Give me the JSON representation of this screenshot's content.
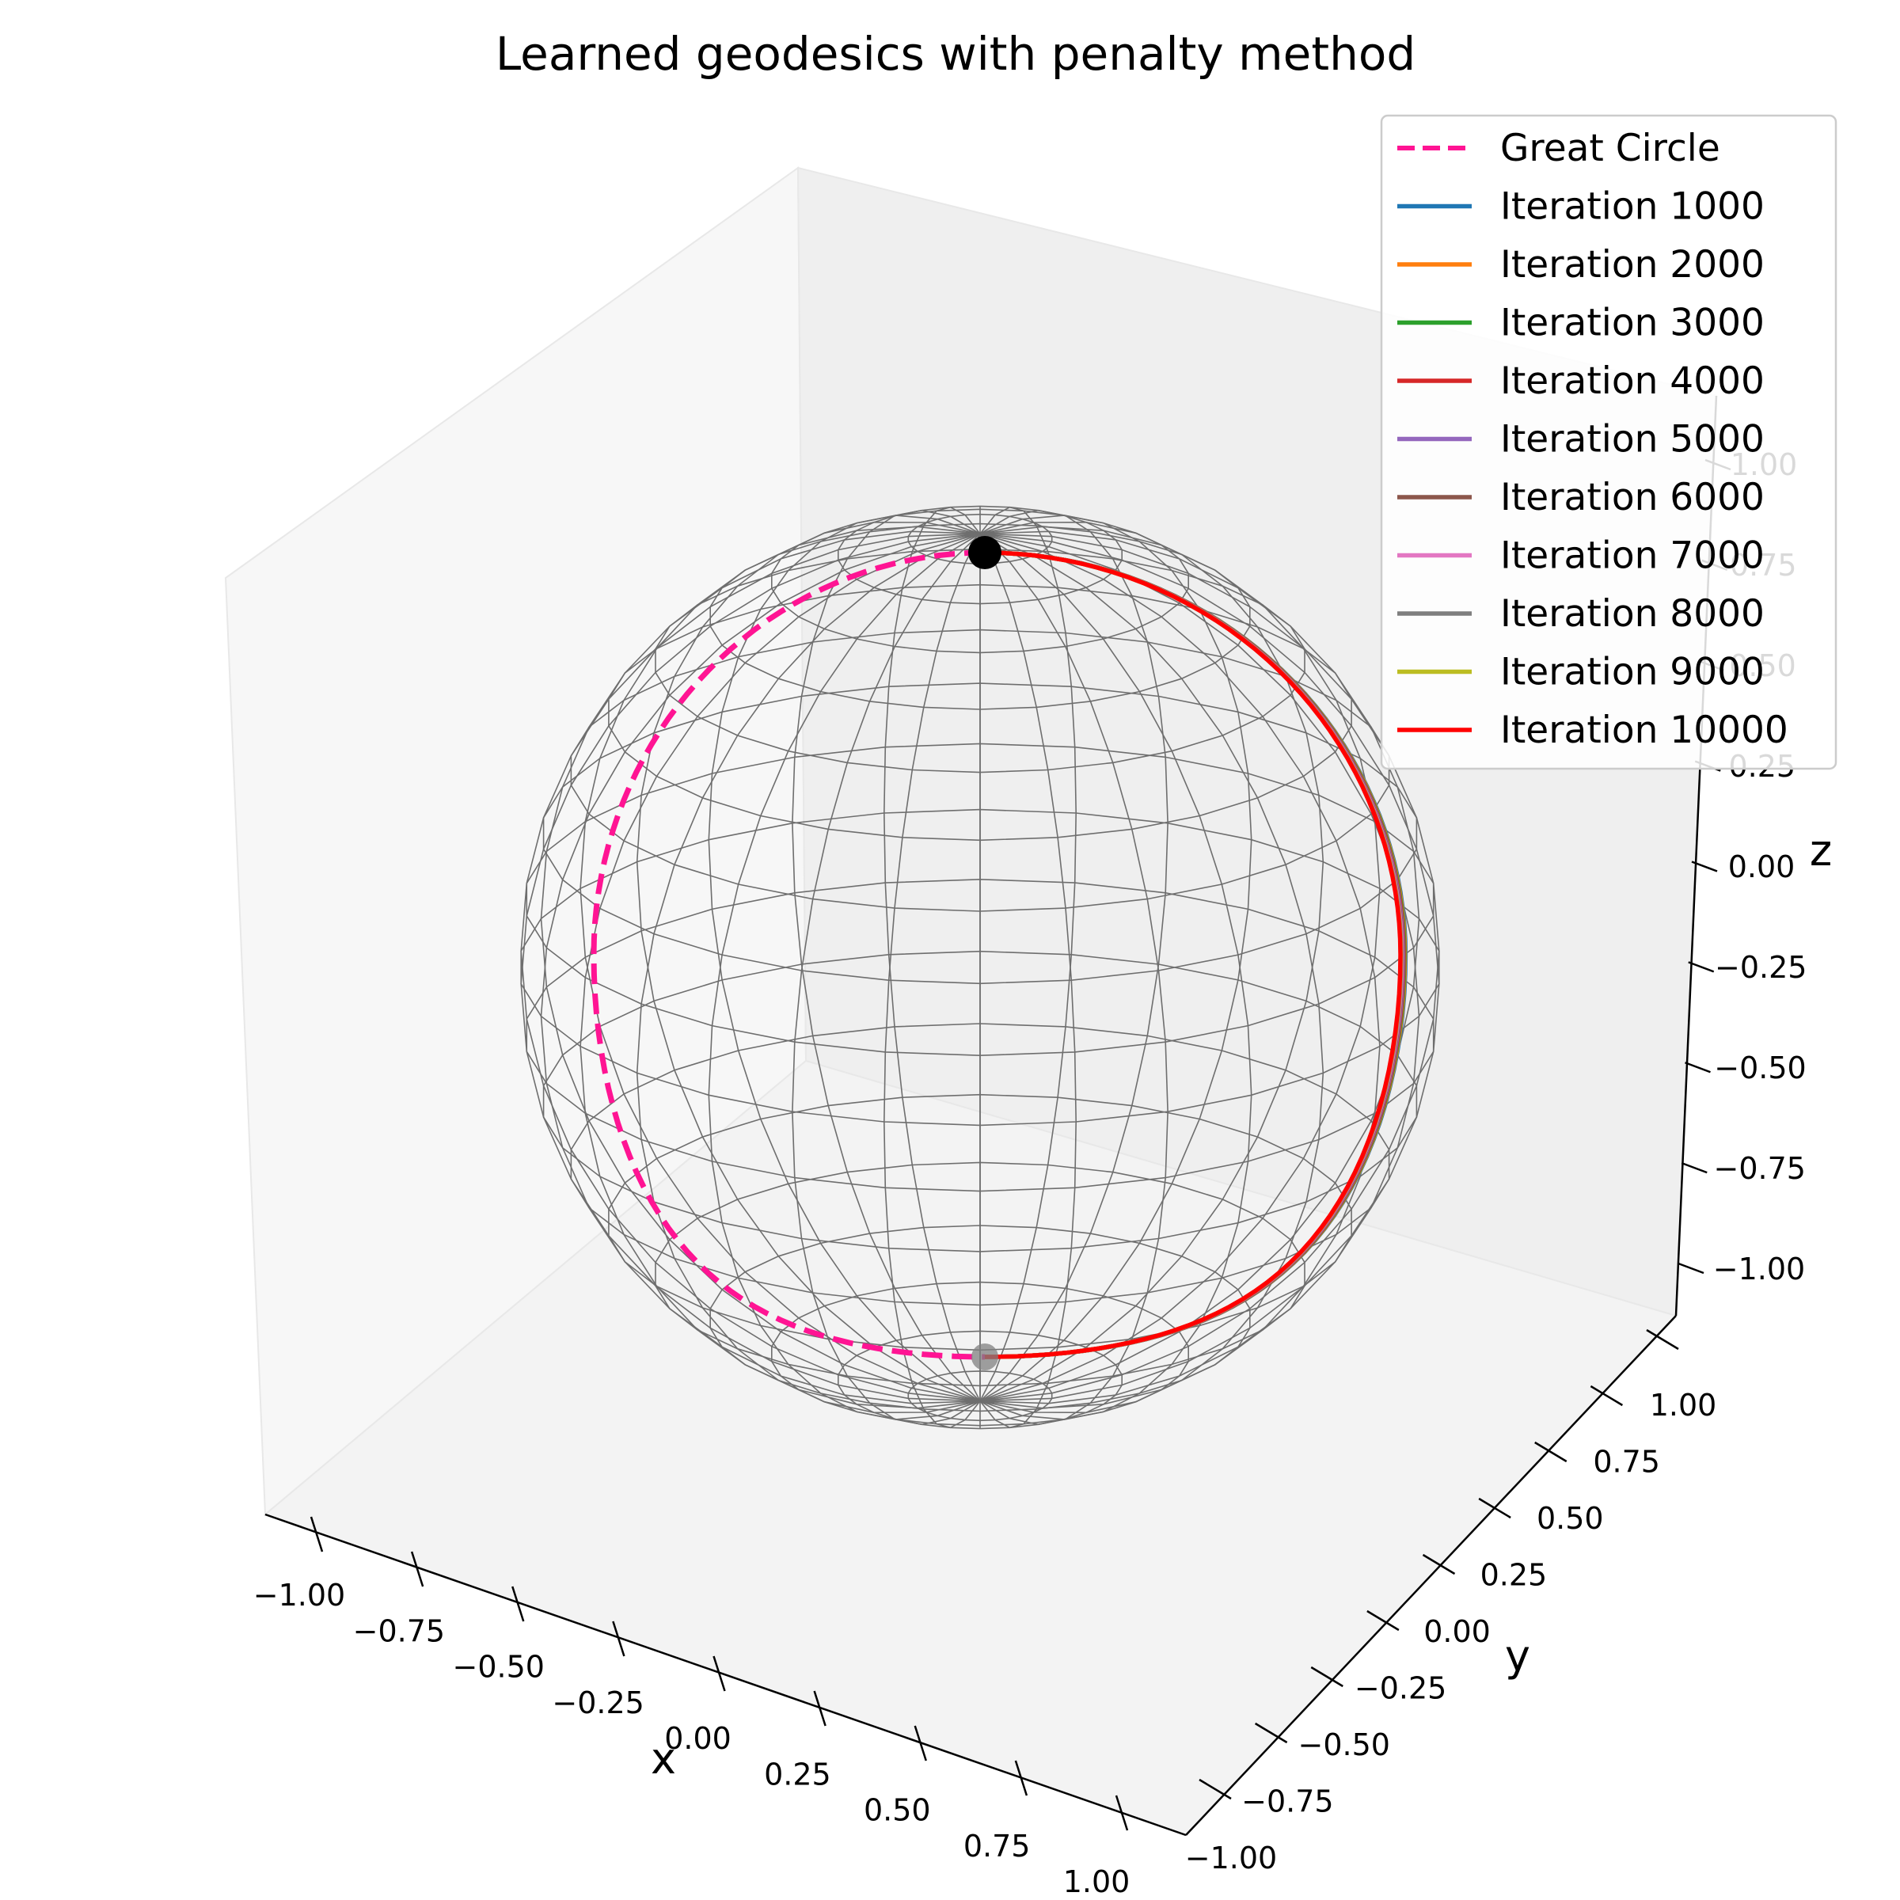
{
  "chart_data": {
    "type": "line",
    "subtype": "3d-surface-with-paths",
    "title": "Learned geodesics with penalty method",
    "xlabel": "x",
    "ylabel": "y",
    "zlabel": "z",
    "xlim": [
      -1.0,
      1.0
    ],
    "ylim": [
      -1.0,
      1.0
    ],
    "zlim": [
      -1.0,
      1.0
    ],
    "x_ticks": [
      "−1.00",
      "−0.75",
      "−0.50",
      "−0.25",
      "0.00",
      "0.25",
      "0.50",
      "0.75",
      "1.00"
    ],
    "y_ticks": [
      "−1.00",
      "−0.75",
      "−0.50",
      "−0.25",
      "0.00",
      "0.25",
      "0.50",
      "0.75",
      "1.00"
    ],
    "z_ticks": [
      "−1.00",
      "−0.75",
      "−0.50",
      "−0.25",
      "0.00",
      "0.25",
      "0.50",
      "0.75",
      "1.00"
    ],
    "surface": "unit sphere wireframe",
    "endpoints": [
      {
        "point": [
          0.0,
          0.0,
          1.0
        ],
        "color": "#000000"
      },
      {
        "point": [
          0.0,
          0.0,
          -1.0
        ],
        "color": "#808080"
      }
    ],
    "legend_position": "upper-right",
    "series": [
      {
        "name": "Great Circle",
        "color": "#ff1493",
        "style": "dashed",
        "azimuth_deg": 180
      },
      {
        "name": "Iteration 1000",
        "color": "#1f77b4",
        "style": "solid",
        "azimuth_deg": 4
      },
      {
        "name": "Iteration 2000",
        "color": "#ff7f0e",
        "style": "solid",
        "azimuth_deg": 3.5
      },
      {
        "name": "Iteration 3000",
        "color": "#2ca02c",
        "style": "solid",
        "azimuth_deg": 3
      },
      {
        "name": "Iteration 4000",
        "color": "#d62728",
        "style": "solid",
        "azimuth_deg": 2.5
      },
      {
        "name": "Iteration 5000",
        "color": "#9467bd",
        "style": "solid",
        "azimuth_deg": 2
      },
      {
        "name": "Iteration 6000",
        "color": "#8c564b",
        "style": "solid",
        "azimuth_deg": 1.5
      },
      {
        "name": "Iteration 7000",
        "color": "#e377c2",
        "style": "solid",
        "azimuth_deg": 1
      },
      {
        "name": "Iteration 8000",
        "color": "#7f7f7f",
        "style": "solid",
        "azimuth_deg": 0.5
      },
      {
        "name": "Iteration 9000",
        "color": "#bcbd22",
        "style": "solid",
        "azimuth_deg": 0.2
      },
      {
        "name": "Iteration 10000",
        "color": "#ff0000",
        "style": "solid",
        "azimuth_deg": 0
      }
    ]
  }
}
